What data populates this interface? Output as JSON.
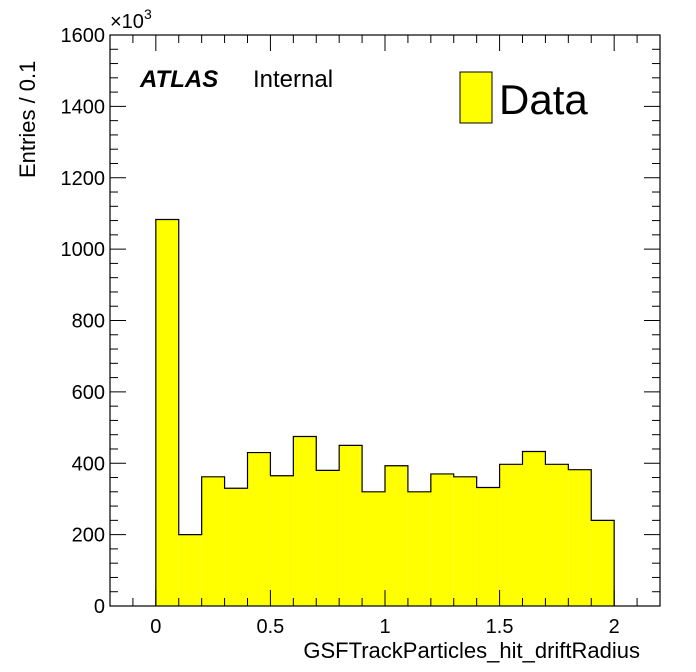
{
  "chart_data": {
    "type": "bar",
    "histogram": true,
    "xlabel": "GSFTrackParticles_hit_driftRadius",
    "ylabel": "Entries / 0.1",
    "y_multiplier_label": "×10",
    "y_multiplier_exponent": "3",
    "xlim": [
      -0.2,
      2.2
    ],
    "ylim": [
      0,
      1600
    ],
    "x_ticks": [
      0,
      0.5,
      1,
      1.5,
      2
    ],
    "x_tick_labels": [
      "0",
      "0.5",
      "1",
      "1.5",
      "2"
    ],
    "y_ticks": [
      0,
      200,
      400,
      600,
      800,
      1000,
      1200,
      1400,
      1600
    ],
    "y_tick_labels": [
      "0",
      "200",
      "400",
      "600",
      "800",
      "1000",
      "1200",
      "1400",
      "1600"
    ],
    "bin_edges": [
      0.0,
      0.1,
      0.2,
      0.3,
      0.4,
      0.5,
      0.6,
      0.7,
      0.8,
      0.9,
      1.0,
      1.1,
      1.2,
      1.3,
      1.4,
      1.5,
      1.6,
      1.7,
      1.8,
      1.9,
      2.0
    ],
    "values": [
      1083,
      200,
      362,
      330,
      430,
      365,
      475,
      380,
      450,
      320,
      393,
      320,
      370,
      362,
      332,
      397,
      433,
      397,
      382,
      240
    ],
    "series": [
      {
        "name": "Data",
        "color": "#ffff00"
      }
    ],
    "fill_color": "#ffff00",
    "legend_position": "top-right",
    "grid": false,
    "atlas_label": "ATLAS",
    "atlas_sublabel": "Internal"
  }
}
